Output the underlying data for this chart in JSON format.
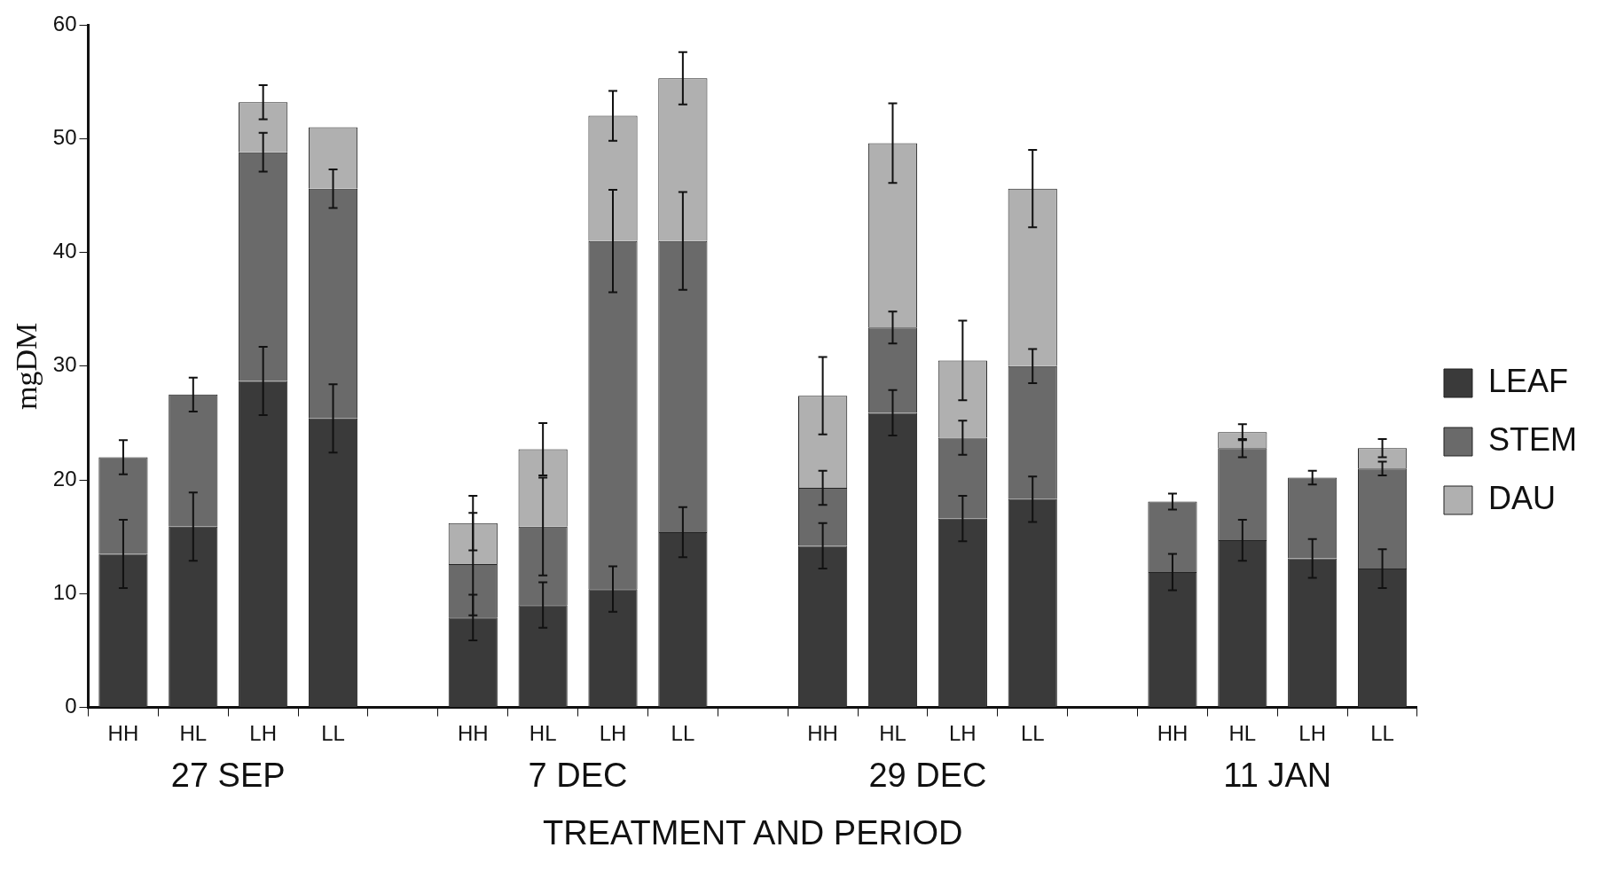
{
  "chart_data": {
    "type": "bar",
    "stacked": true,
    "xlabel": "TREATMENT AND PERIOD",
    "ylabel": "mgDM",
    "categories": [
      "HH",
      "HL",
      "LH",
      "LL",
      null,
      "HH",
      "HL",
      "LH",
      "LL",
      null,
      "HH",
      "HL",
      "LH",
      "LL",
      null,
      "HH",
      "HL",
      "LH",
      "LL"
    ],
    "series": [
      {
        "name": "LEAF",
        "color": "#3a3a3a",
        "values": [
          13.5,
          15.9,
          28.7,
          25.4,
          null,
          7.9,
          9,
          10.4,
          15.4,
          null,
          14.2,
          25.9,
          16.6,
          18.3,
          null,
          11.9,
          14.7,
          13.1,
          12.2
        ],
        "errors": [
          3,
          3,
          3,
          3,
          null,
          2,
          2,
          2,
          2.2,
          null,
          2,
          2,
          2,
          2,
          null,
          1.6,
          1.8,
          1.7,
          1.7
        ]
      },
      {
        "name": "STEM",
        "color": "#6a6a6a",
        "values": [
          8.5,
          11.6,
          20.1,
          20.2,
          null,
          4.7,
          6.9,
          30.6,
          25.6,
          null,
          5.1,
          7.5,
          7.1,
          11.7,
          null,
          6.2,
          8.1,
          7.1,
          8.8
        ],
        "errors": [
          1.5,
          1.5,
          1.7,
          1.7,
          null,
          4.5,
          4.3,
          4.5,
          4.3,
          null,
          1.5,
          1.4,
          1.5,
          1.5,
          null,
          0.7,
          0.8,
          0.6,
          0.6
        ]
      },
      {
        "name": "DAU",
        "color": "#b0b0b0",
        "values": [
          null,
          null,
          4.4,
          5.4,
          null,
          3.6,
          6.8,
          11,
          14.3,
          null,
          8.1,
          16.2,
          6.8,
          15.6,
          null,
          null,
          1.4,
          null,
          1.8
        ],
        "errors": [
          null,
          null,
          1.5,
          null,
          null,
          2.4,
          2.3,
          2.2,
          2.3,
          null,
          3.4,
          3.5,
          3.5,
          3.4,
          null,
          null,
          0.7,
          null,
          0.8
        ]
      }
    ],
    "annotations": [
      "27 SEP",
      "7 DEC",
      "29 DEC",
      "11 JAN"
    ],
    "ylim": [
      0,
      60
    ],
    "yticks": [
      0,
      10,
      20,
      30,
      40,
      50,
      60
    ],
    "grid": false,
    "legend": "right"
  }
}
